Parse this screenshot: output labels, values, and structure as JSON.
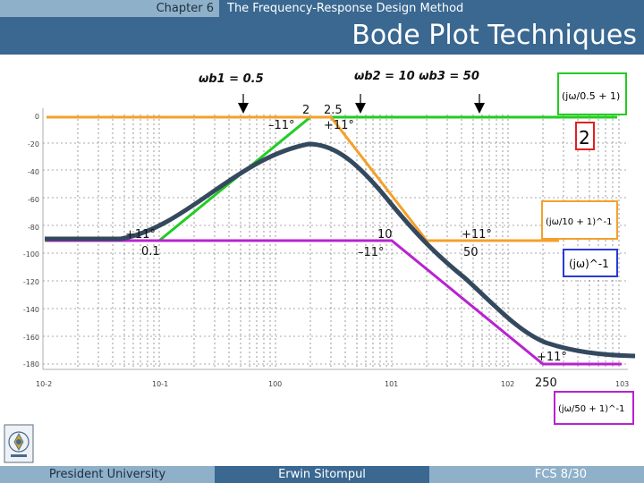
{
  "header": {
    "chapter": "Chapter 6",
    "chapter_title": "The Frequency-Response Design Method",
    "slide_title": "Bode Plot Techniques"
  },
  "footer": {
    "institution": "President University",
    "author": "Erwin Sitompul",
    "page": "FCS 8/30"
  },
  "annotations": {
    "wb1": "ωb1 = 0.5",
    "wb2_wb3": "ωb2 = 10  ωb3 = 50",
    "n2": "2",
    "n2_5": "2.5",
    "minus11_a": "–11°",
    "plus11_a": "+11°",
    "plus11_b": "+11°",
    "n0_1": "0.1",
    "n10": "10",
    "minus11_b": "–11°",
    "plus11_c": "+11°",
    "n50": "50",
    "plus11_d": "+11°",
    "n250": "250"
  },
  "y_tick_labels": [
    "0",
    "-20",
    "-40",
    "-60",
    "-80",
    "-100",
    "-120",
    "-140",
    "-160",
    "-180"
  ],
  "x_tick_labels": [
    "10-2",
    "10-1",
    "100",
    "101",
    "102",
    "103"
  ],
  "legend": {
    "lead_factor": "(jω/0.5 + 1)",
    "gain": "2",
    "lag_factor_10": "(jω/10 + 1)^-1",
    "integrator": "(jω)^-1",
    "lag_factor_50": "(jω/50 + 1)^-1"
  },
  "colors": {
    "header": "#3a6891",
    "header_light": "#8fb0c9",
    "actual_curve": "#34495e",
    "green": "#22cc22",
    "orange": "#f5a02a",
    "purple": "#b822d0",
    "red": "#e02020",
    "blue": "#2a3ad8"
  }
}
